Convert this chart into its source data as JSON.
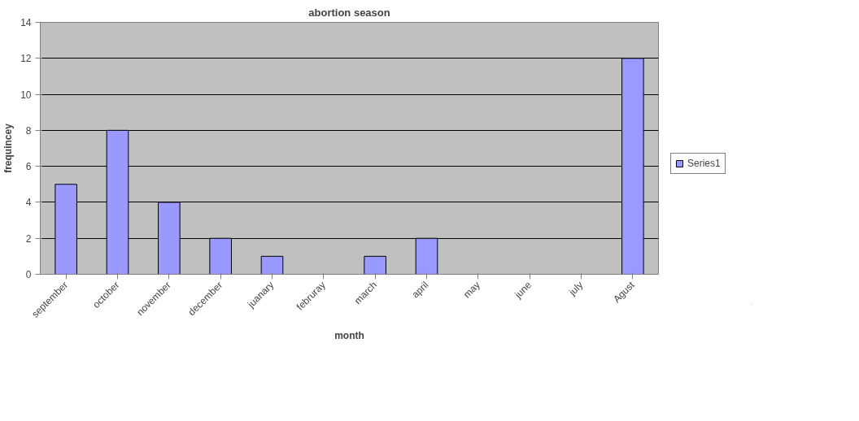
{
  "chart_data": {
    "type": "bar",
    "title": "abortion season",
    "xlabel": "month",
    "ylabel": "frequincey",
    "categories": [
      "september",
      "october",
      "november",
      "december",
      "juanary",
      "februray",
      "march",
      "april",
      "may",
      "june",
      "july",
      "Agust"
    ],
    "series": [
      {
        "name": "Series1",
        "color": "#9999ff",
        "values": [
          5,
          8,
          4,
          2,
          1,
          0,
          1,
          2,
          0,
          0,
          0,
          12
        ]
      }
    ],
    "ylim": [
      0,
      14
    ],
    "yticks": [
      0,
      2,
      4,
      6,
      8,
      10,
      12,
      14
    ],
    "grid": "y",
    "legend": "right"
  }
}
